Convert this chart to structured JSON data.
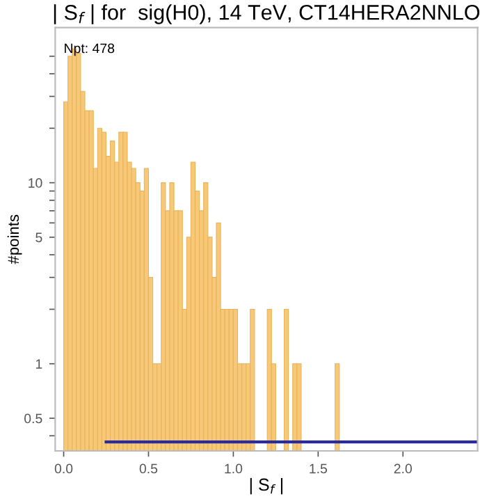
{
  "chart_data": {
    "type": "histogram",
    "title": "| S$_{f}$ | for  sig(H0), 14 TeV, CT14HERA2NNLO",
    "xlabel": "| S$_{f}$ |",
    "ylabel": "#points",
    "log": "y",
    "bins": [
      0,
      0.025,
      0.05,
      0.075,
      0.1,
      0.125,
      0.15,
      0.175,
      0.2,
      0.225,
      0.25,
      0.275,
      0.3,
      0.325,
      0.35,
      0.375,
      0.4,
      0.425,
      0.45,
      0.475,
      0.5,
      0.525,
      0.55,
      0.575,
      0.6,
      0.625,
      0.65,
      0.675,
      0.7,
      0.725,
      0.75,
      0.775,
      0.8,
      0.825,
      0.85,
      0.875,
      0.9,
      0.925,
      0.95,
      0.975,
      1.0,
      1.025,
      1.05,
      1.075,
      1.1,
      1.125,
      1.15,
      1.175,
      1.2,
      1.225,
      1.25,
      1.275,
      1.3,
      1.325,
      1.35,
      1.375,
      1.4,
      1.425,
      1.45,
      1.475,
      1.5,
      1.525,
      1.55,
      1.575,
      1.6,
      1.625
    ],
    "series": [
      {
        "color": "#f6c878",
        "values": [
          28,
          50,
          55,
          52,
          32,
          25,
          25,
          12,
          20,
          19,
          14,
          17,
          13,
          19,
          19,
          13,
          12,
          10,
          9,
          12,
          3,
          1,
          1,
          10,
          7,
          10,
          7,
          7,
          2,
          5,
          13,
          9,
          7,
          10,
          5,
          3,
          6,
          2,
          2,
          2,
          2,
          1,
          1,
          1,
          2,
          null,
          null,
          null,
          2,
          1,
          null,
          null,
          2,
          null,
          1,
          1,
          null,
          null,
          null,
          null,
          null,
          null,
          null,
          null,
          1
        ]
      },
      {
        "type": "line",
        "color": "#2b2ba0",
        "x": [
          0.25,
          2.44
        ],
        "values": [
          0.37,
          0.37
        ]
      }
    ],
    "xlim": [
      -0.05,
      2.44
    ],
    "ylim": [
      0.33,
      72
    ],
    "xticks": [
      {
        "value": 0,
        "label": "0.0"
      },
      {
        "value": 0.5,
        "label": "0.5"
      },
      {
        "value": 1,
        "label": "1.0"
      },
      {
        "value": 1.5,
        "label": "1.5"
      },
      {
        "value": 2,
        "label": "2.0"
      }
    ],
    "yticks": [
      0.5,
      1,
      5,
      10,
      {
        "value": 0.4,
        "label": null
      },
      {
        "value": 2,
        "label": null
      },
      {
        "value": 3,
        "label": null
      },
      {
        "value": 4,
        "label": null
      },
      {
        "value": 6,
        "label": null
      },
      {
        "value": 7,
        "label": null
      },
      {
        "value": 8,
        "label": null
      },
      {
        "value": 9,
        "label": null
      },
      {
        "value": 20,
        "label": null
      },
      {
        "value": 30,
        "label": null
      },
      {
        "value": 40,
        "label": null
      },
      {
        "value": 50,
        "label": null
      }
    ],
    "annotations": [
      "Npt: 478"
    ],
    "grid": false,
    "legend": false
  }
}
